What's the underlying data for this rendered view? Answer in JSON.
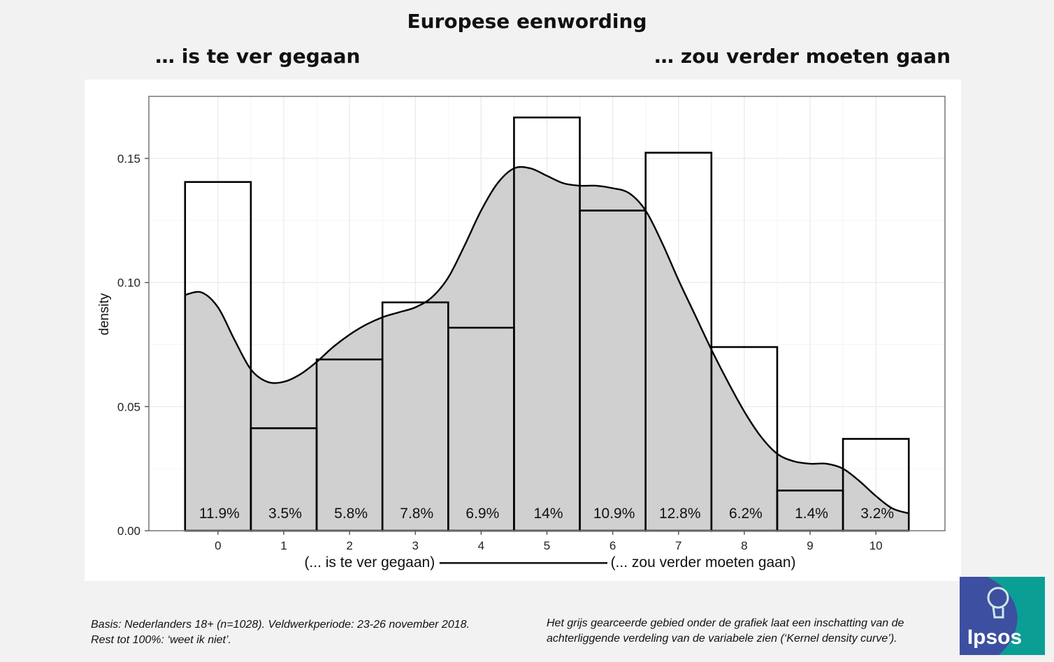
{
  "header": {
    "title": "Europese eenwording",
    "left_pole": "… is te ver gegaan",
    "right_pole": "… zou verder moeten gaan"
  },
  "chart_data": {
    "type": "bar",
    "ylabel": "density",
    "xlabel": "(... is te ver gegaan) -------------------------------------------------- (... zou verder moeten gaan)",
    "xlabel_left": "(... is te ver gegaan)",
    "xlabel_dashes": "--------------------------------------------------",
    "xlabel_right": "(... zou verder moeten gaan)",
    "ylim": [
      0,
      0.175
    ],
    "xlim": [
      -1.05,
      11.05
    ],
    "yticks": [
      0.0,
      0.05,
      0.1,
      0.15
    ],
    "ytick_labels": [
      "0.00",
      "0.05",
      "0.10",
      "0.15"
    ],
    "categories": [
      "0",
      "1",
      "2",
      "3",
      "4",
      "5",
      "6",
      "7",
      "8",
      "9",
      "10"
    ],
    "histogram_density": [
      0.1405,
      0.0413,
      0.069,
      0.092,
      0.0818,
      0.1665,
      0.129,
      0.1523,
      0.074,
      0.0162,
      0.037
    ],
    "bar_labels": [
      "11.9%",
      "3.5%",
      "5.8%",
      "7.8%",
      "6.9%",
      "14%",
      "10.9%",
      "12.8%",
      "6.2%",
      "1.4%",
      "3.2%"
    ],
    "kernel_density": {
      "x": [
        -0.5,
        -0.25,
        0,
        0.25,
        0.5,
        0.75,
        1,
        1.25,
        1.5,
        1.75,
        2,
        2.25,
        2.5,
        2.75,
        3,
        3.25,
        3.5,
        3.75,
        4,
        4.25,
        4.5,
        4.75,
        5,
        5.25,
        5.5,
        5.75,
        6,
        6.25,
        6.5,
        6.75,
        7,
        7.25,
        7.5,
        7.75,
        8,
        8.25,
        8.5,
        8.75,
        9,
        9.25,
        9.5,
        9.75,
        10,
        10.25,
        10.5
      ],
      "y": [
        0.095,
        0.096,
        0.09,
        0.077,
        0.065,
        0.06,
        0.06,
        0.063,
        0.068,
        0.074,
        0.079,
        0.083,
        0.086,
        0.088,
        0.09,
        0.094,
        0.102,
        0.115,
        0.129,
        0.14,
        0.146,
        0.146,
        0.143,
        0.14,
        0.139,
        0.139,
        0.138,
        0.136,
        0.129,
        0.116,
        0.101,
        0.087,
        0.073,
        0.06,
        0.048,
        0.038,
        0.031,
        0.028,
        0.027,
        0.027,
        0.025,
        0.02,
        0.014,
        0.009,
        0.007
      ]
    },
    "grid": true,
    "colors": {
      "density_fill": "#d0d0d0",
      "bar_stroke": "#000000",
      "frame": "#7f7f7f",
      "grid": "#ebebeb"
    }
  },
  "footer": {
    "basis_line1": "Basis: Nederlanders 18+ (n=1028). Veldwerkperiode: 23-26 november 2018.",
    "basis_line2": "Rest tot 100%: ‘weet ik niet’.",
    "note": "Het grijs gearceerde gebied onder de grafiek laat een inschatting van de achterliggende verdeling van de variabele zien (‘Kernel density curve’)."
  },
  "logo": {
    "text": "Ipsos",
    "colors": [
      "#3d4fa0",
      "#0a9e95"
    ]
  }
}
